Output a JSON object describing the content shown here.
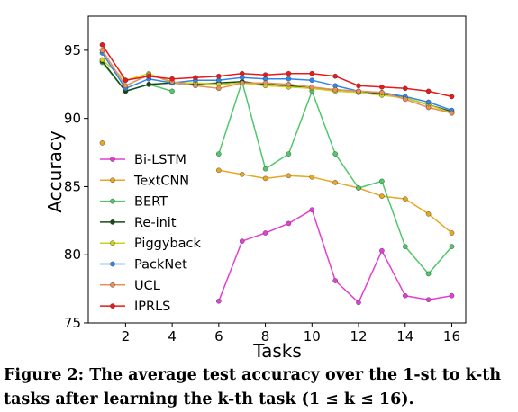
{
  "chart_data": {
    "type": "line",
    "title": "",
    "xlabel": "Tasks",
    "ylabel": "Accuracy",
    "xlim": [
      0.4,
      16.6
    ],
    "ylim": [
      75,
      97.5
    ],
    "xticks": [
      2,
      4,
      6,
      8,
      10,
      12,
      14,
      16
    ],
    "yticks": [
      75,
      80,
      85,
      90,
      95
    ],
    "grid": false,
    "legend_position": "left",
    "x": [
      1,
      2,
      3,
      4,
      5,
      6,
      7,
      8,
      9,
      10,
      11,
      12,
      13,
      14,
      15,
      16
    ],
    "series": [
      {
        "name": "Bi-LSTM",
        "color": "#e43fd2",
        "values": [
          null,
          null,
          null,
          null,
          null,
          76.6,
          81.0,
          81.6,
          82.3,
          83.3,
          78.1,
          76.5,
          80.3,
          77.0,
          76.7,
          77.0
        ]
      },
      {
        "name": "TextCNN",
        "color": "#e8a623",
        "values": [
          88.2,
          null,
          null,
          null,
          null,
          86.2,
          85.9,
          85.6,
          85.8,
          85.7,
          85.3,
          84.9,
          84.3,
          84.1,
          83.0,
          81.6
        ]
      },
      {
        "name": "BERT",
        "color": "#4fc86a",
        "values": [
          94.1,
          92.0,
          92.5,
          92.0,
          null,
          87.4,
          92.7,
          86.3,
          87.4,
          92.0,
          87.4,
          84.9,
          85.4,
          80.6,
          78.6,
          80.6
        ]
      },
      {
        "name": "Re-init",
        "color": "#184a18",
        "values": [
          94.2,
          92.0,
          92.5,
          92.6,
          92.5,
          92.6,
          92.7,
          92.5,
          92.4,
          92.2,
          92.1,
          92.0,
          91.8,
          91.5,
          91.0,
          90.5
        ]
      },
      {
        "name": "Piggyback",
        "color": "#cdd21c",
        "values": [
          94.3,
          92.8,
          93.3,
          92.6,
          92.6,
          92.5,
          92.6,
          92.4,
          92.3,
          92.2,
          92.0,
          91.9,
          91.7,
          91.5,
          91.0,
          90.4
        ]
      },
      {
        "name": "PackNet",
        "color": "#2f86e8",
        "values": [
          94.8,
          92.2,
          92.9,
          92.6,
          92.8,
          92.8,
          93.0,
          92.9,
          92.9,
          92.8,
          92.4,
          92.0,
          91.9,
          91.6,
          91.2,
          90.6
        ]
      },
      {
        "name": "UCL",
        "color": "#e8905a",
        "values": [
          95.0,
          92.4,
          93.2,
          92.7,
          92.4,
          92.2,
          92.6,
          92.6,
          92.5,
          92.3,
          92.1,
          92.0,
          91.9,
          91.4,
          90.8,
          90.4
        ]
      },
      {
        "name": "IPRLS",
        "color": "#e81a1a",
        "values": [
          95.4,
          92.8,
          93.1,
          92.9,
          93.0,
          93.1,
          93.3,
          93.2,
          93.3,
          93.3,
          93.1,
          92.4,
          92.3,
          92.2,
          92.0,
          91.6
        ]
      }
    ]
  },
  "caption": "Figure 2: The average test accuracy over the 1-st to k-th tasks after learning the k-th task (1 ≤ k ≤ 16)."
}
